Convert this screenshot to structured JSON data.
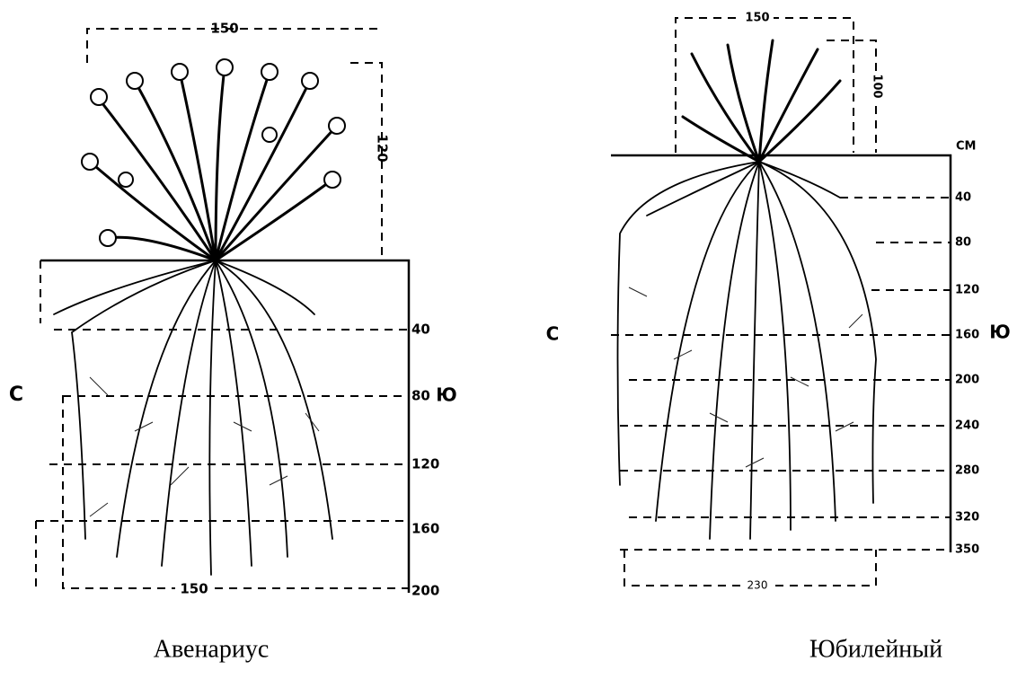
{
  "figures": [
    {
      "caption": "Авенариус",
      "crown_width": 150,
      "crown_height": 120,
      "west": "С",
      "east": "Ю",
      "depths": [
        40,
        80,
        120,
        160,
        200
      ],
      "root_width": 150
    },
    {
      "caption": "Юбилейный",
      "crown_width": 150,
      "crown_height": 100,
      "unit": "СМ",
      "west": "С",
      "east": "Ю",
      "depths": [
        40,
        80,
        120,
        160,
        200,
        240,
        280,
        320,
        350
      ],
      "root_width": 230
    }
  ]
}
